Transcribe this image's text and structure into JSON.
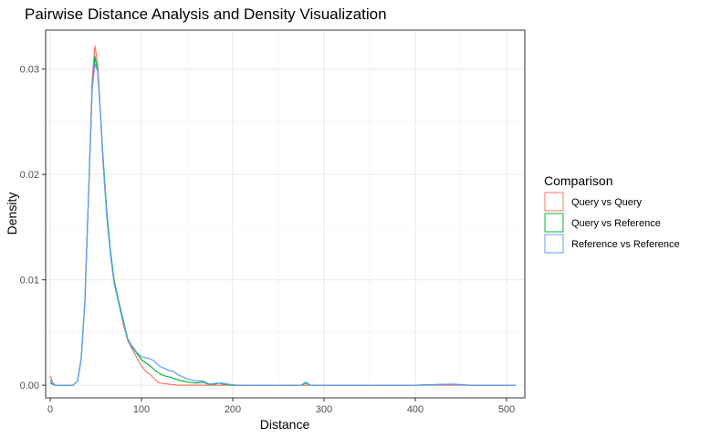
{
  "chart_data": {
    "type": "line",
    "title": "Pairwise Distance Analysis and Density Visualization",
    "xlabel": "Distance",
    "ylabel": "Density",
    "xlim": [
      -5,
      520
    ],
    "ylim": [
      -0.0012,
      0.0337
    ],
    "x_ticks": [
      0,
      100,
      200,
      300,
      400,
      500
    ],
    "x_tick_labels": [
      "0",
      "100",
      "200",
      "300",
      "400",
      "500"
    ],
    "y_ticks": [
      0.0,
      0.01,
      0.02,
      0.03
    ],
    "y_tick_labels": [
      "0.00",
      "0.01",
      "0.02",
      "0.03"
    ],
    "grid": true,
    "legend": {
      "title": "Comparison",
      "position": "right"
    },
    "series": [
      {
        "name": "Query vs Query",
        "color": "#F8766D",
        "points": [
          [
            0,
            0.0009
          ],
          [
            3,
            0.0002
          ],
          [
            6,
            0.0
          ],
          [
            15,
            0.0
          ],
          [
            25,
            0.0
          ],
          [
            30,
            0.0004
          ],
          [
            34,
            0.0025
          ],
          [
            38,
            0.008
          ],
          [
            42,
            0.018
          ],
          [
            46,
            0.029
          ],
          [
            49,
            0.0322
          ],
          [
            52,
            0.0305
          ],
          [
            55,
            0.026
          ],
          [
            58,
            0.021
          ],
          [
            62,
            0.016
          ],
          [
            66,
            0.0125
          ],
          [
            70,
            0.0098
          ],
          [
            75,
            0.0078
          ],
          [
            80,
            0.0058
          ],
          [
            85,
            0.0042
          ],
          [
            90,
            0.0034
          ],
          [
            95,
            0.0026
          ],
          [
            100,
            0.0018
          ],
          [
            105,
            0.0013
          ],
          [
            110,
            0.001
          ],
          [
            115,
            0.0005
          ],
          [
            120,
            0.0002
          ],
          [
            130,
            0.0001
          ],
          [
            140,
            0.0
          ],
          [
            200,
            0.0
          ],
          [
            300,
            0.0
          ],
          [
            400,
            0.0
          ],
          [
            510,
            0.0
          ]
        ]
      },
      {
        "name": "Query vs Reference",
        "color": "#00BA38",
        "points": [
          [
            0,
            0.0002
          ],
          [
            5,
            0.0
          ],
          [
            15,
            0.0
          ],
          [
            25,
            0.0
          ],
          [
            30,
            0.0004
          ],
          [
            34,
            0.0025
          ],
          [
            38,
            0.008
          ],
          [
            42,
            0.018
          ],
          [
            46,
            0.028
          ],
          [
            49,
            0.0312
          ],
          [
            52,
            0.0298
          ],
          [
            55,
            0.0258
          ],
          [
            58,
            0.0215
          ],
          [
            62,
            0.0165
          ],
          [
            66,
            0.0128
          ],
          [
            70,
            0.01
          ],
          [
            75,
            0.008
          ],
          [
            80,
            0.0062
          ],
          [
            85,
            0.0044
          ],
          [
            90,
            0.0036
          ],
          [
            95,
            0.003
          ],
          [
            100,
            0.0024
          ],
          [
            105,
            0.0021
          ],
          [
            110,
            0.0018
          ],
          [
            115,
            0.0014
          ],
          [
            120,
            0.0011
          ],
          [
            125,
            0.0009
          ],
          [
            130,
            0.0008
          ],
          [
            140,
            0.0005
          ],
          [
            150,
            0.0003
          ],
          [
            160,
            0.0002
          ],
          [
            167,
            0.0003
          ],
          [
            173,
            0.0001
          ],
          [
            180,
            0.0001
          ],
          [
            185,
            0.0002
          ],
          [
            190,
            0.0001
          ],
          [
            200,
            0.0
          ],
          [
            260,
            0.0
          ],
          [
            275,
            0.0
          ],
          [
            280,
            0.0002
          ],
          [
            285,
            0.0
          ],
          [
            300,
            0.0
          ],
          [
            400,
            0.0
          ],
          [
            440,
            0.0001
          ],
          [
            460,
            0.0
          ],
          [
            510,
            0.0
          ]
        ]
      },
      {
        "name": "Reference vs Reference",
        "color": "#619CFF",
        "points": [
          [
            0,
            0.0005
          ],
          [
            4,
            0.0
          ],
          [
            15,
            0.0
          ],
          [
            25,
            0.0
          ],
          [
            30,
            0.0004
          ],
          [
            34,
            0.0025
          ],
          [
            38,
            0.008
          ],
          [
            42,
            0.018
          ],
          [
            46,
            0.028
          ],
          [
            49,
            0.0305
          ],
          [
            52,
            0.0298
          ],
          [
            55,
            0.0258
          ],
          [
            58,
            0.021
          ],
          [
            62,
            0.016
          ],
          [
            66,
            0.0124
          ],
          [
            70,
            0.0097
          ],
          [
            75,
            0.0078
          ],
          [
            80,
            0.006
          ],
          [
            85,
            0.0043
          ],
          [
            90,
            0.0037
          ],
          [
            95,
            0.0031
          ],
          [
            100,
            0.0027
          ],
          [
            105,
            0.0026
          ],
          [
            110,
            0.0025
          ],
          [
            115,
            0.0022
          ],
          [
            120,
            0.0018
          ],
          [
            125,
            0.0016
          ],
          [
            130,
            0.0014
          ],
          [
            135,
            0.0013
          ],
          [
            140,
            0.001
          ],
          [
            150,
            0.0006
          ],
          [
            160,
            0.0004
          ],
          [
            167,
            0.0004
          ],
          [
            175,
            0.0001
          ],
          [
            182,
            0.0002
          ],
          [
            188,
            0.0002
          ],
          [
            195,
            0.0001
          ],
          [
            205,
            0.0
          ],
          [
            260,
            0.0
          ],
          [
            275,
            0.0
          ],
          [
            280,
            0.0003
          ],
          [
            285,
            0.0
          ],
          [
            300,
            0.0
          ],
          [
            400,
            0.0
          ],
          [
            440,
            0.0001
          ],
          [
            460,
            0.0
          ],
          [
            510,
            0.0
          ]
        ]
      }
    ]
  }
}
